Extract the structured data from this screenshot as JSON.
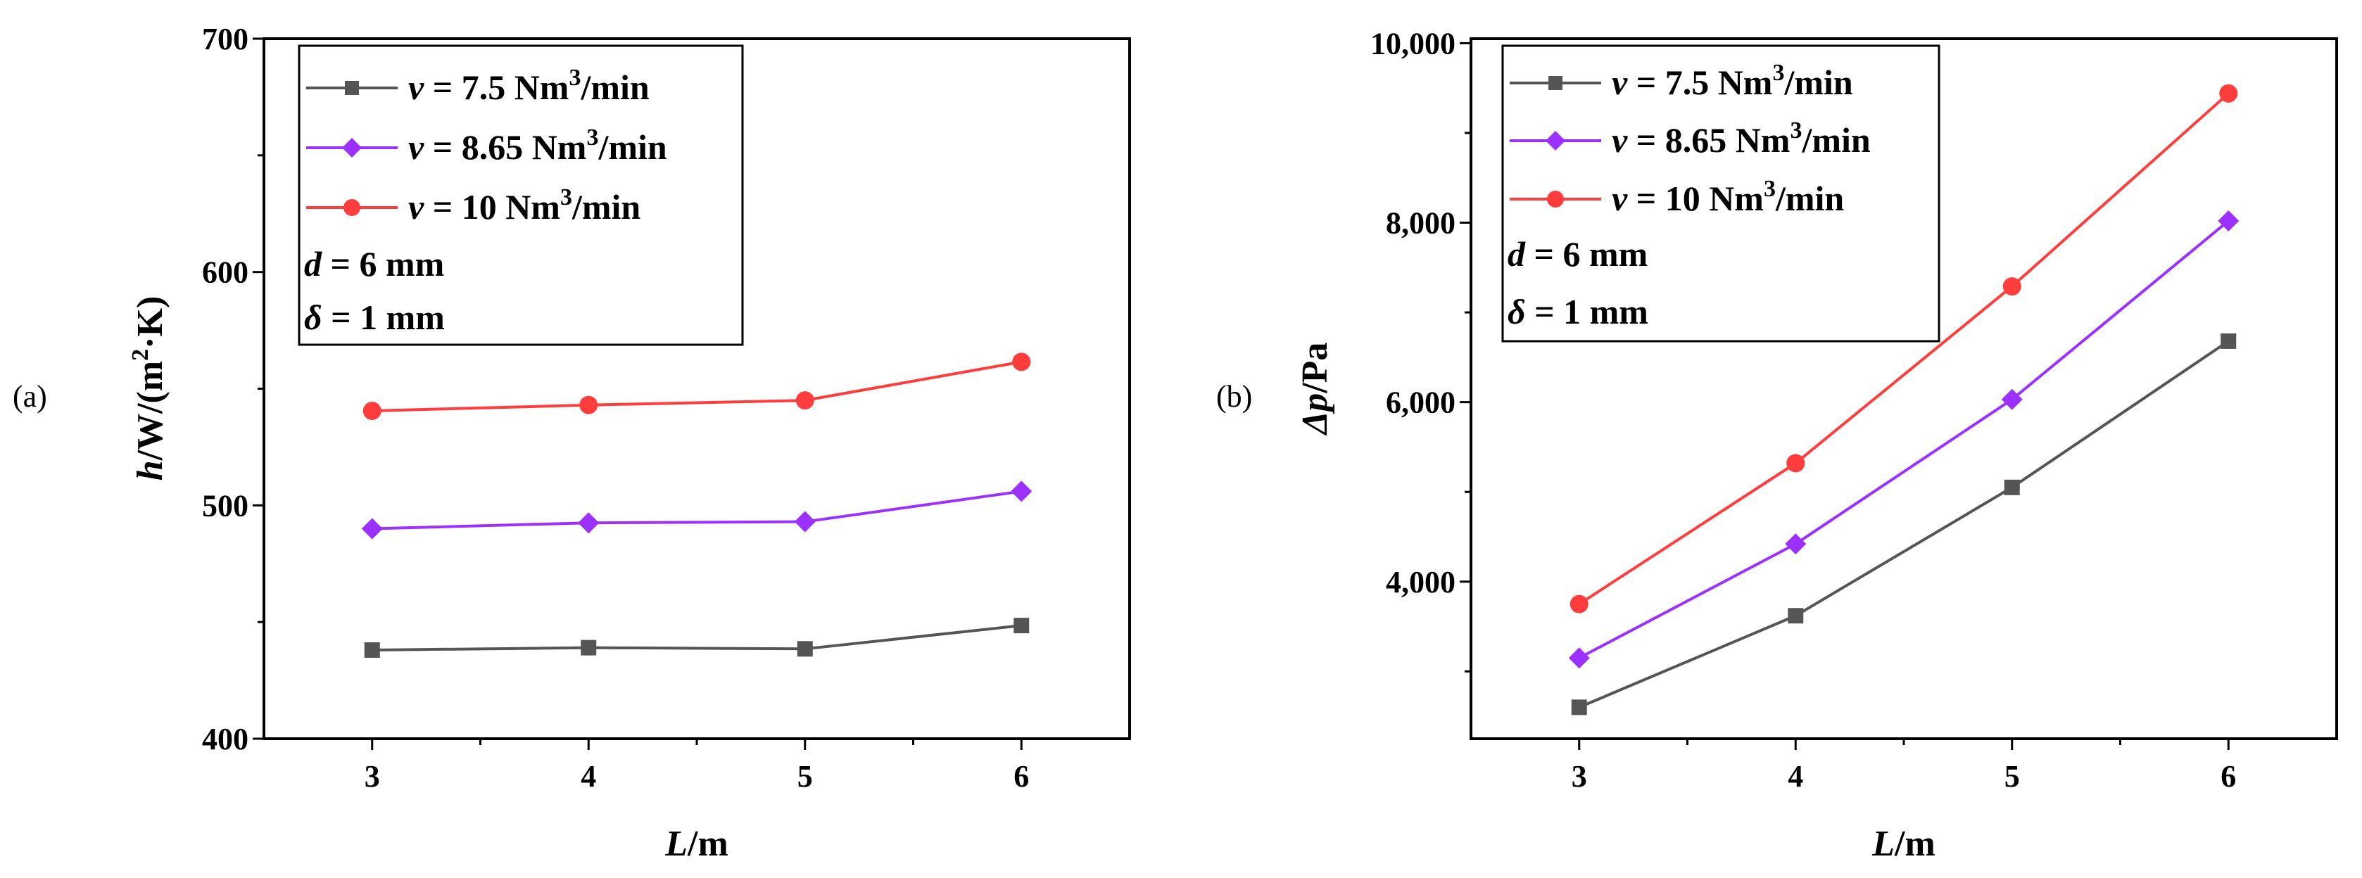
{
  "chart_data": [
    {
      "type": "line",
      "panel_label": "(a)",
      "xlabel": {
        "var": "L",
        "unit": "/m"
      },
      "ylabel": {
        "var": "h",
        "unit": "/W/(m",
        "sup": "2",
        "tail": "·K)"
      },
      "x": [
        3,
        4,
        5,
        6
      ],
      "xticks": [
        "3",
        "4",
        "5",
        "6"
      ],
      "xlim": [
        2.5,
        6.5
      ],
      "ylim": [
        400,
        700
      ],
      "yticks": [
        {
          "v": 400,
          "label": "400"
        },
        {
          "v": 500,
          "label": "500"
        },
        {
          "v": 600,
          "label": "600"
        },
        {
          "v": 700,
          "label": "700"
        }
      ],
      "yminor": [
        450,
        550,
        650
      ],
      "series": [
        {
          "id": "v75",
          "name_pre": "v",
          "name_mid": " = 7.5 Nm",
          "name_sup": "3",
          "name_post": "/min",
          "color": "#555555",
          "marker": "square",
          "values": [
            438,
            439,
            438.5,
            448.5
          ]
        },
        {
          "id": "v865",
          "name_pre": "v",
          "name_mid": " = 8.65 Nm",
          "name_sup": "3",
          "name_post": "/min",
          "color": "#9b30ff",
          "marker": "diamond",
          "values": [
            490,
            492.5,
            493,
            506
          ]
        },
        {
          "id": "v10",
          "name_pre": "v",
          "name_mid": " = 10 Nm",
          "name_sup": "3",
          "name_post": "/min",
          "color": "#ff3d3d",
          "marker": "circle",
          "values": [
            540.5,
            543,
            545,
            561.5
          ]
        }
      ],
      "notes": [
        {
          "var": "d",
          "text": " = 6 mm"
        },
        {
          "var": "δ",
          "text": " = 1 mm"
        }
      ]
    },
    {
      "type": "line",
      "panel_label": "(b)",
      "xlabel": {
        "var": "L",
        "unit": "/m"
      },
      "ylabel": {
        "var": "Δp",
        "unit": "/Pa"
      },
      "x": [
        3,
        4,
        5,
        6
      ],
      "xticks": [
        "3",
        "4",
        "5",
        "6"
      ],
      "xlim": [
        2.5,
        6.5
      ],
      "ylim": [
        2250,
        10050
      ],
      "yticks": [
        {
          "v": 4000,
          "label": "4,000"
        },
        {
          "v": 6000,
          "label": "6,000"
        },
        {
          "v": 8000,
          "label": "8,000"
        },
        {
          "v": 10000,
          "label": "10,000"
        }
      ],
      "yminor": [
        3000,
        5000,
        7000,
        9000
      ],
      "series": [
        {
          "id": "v75",
          "name_pre": "v",
          "name_mid": " = 7.5 Nm",
          "name_sup": "3",
          "name_post": "/min",
          "color": "#555555",
          "marker": "square",
          "values": [
            2600,
            3620,
            5050,
            6680
          ]
        },
        {
          "id": "v865",
          "name_pre": "v",
          "name_mid": " = 8.65 Nm",
          "name_sup": "3",
          "name_post": "/min",
          "color": "#9b30ff",
          "marker": "diamond",
          "values": [
            3150,
            4420,
            6030,
            8020
          ]
        },
        {
          "id": "v10",
          "name_pre": "v",
          "name_mid": " = 10 Nm",
          "name_sup": "3",
          "name_post": "/min",
          "color": "#ff3d3d",
          "marker": "circle",
          "values": [
            3750,
            5320,
            7290,
            9440
          ]
        }
      ],
      "notes": [
        {
          "var": "d",
          "text": " = 6 mm"
        },
        {
          "var": "δ",
          "text": " = 1 mm"
        }
      ]
    }
  ]
}
